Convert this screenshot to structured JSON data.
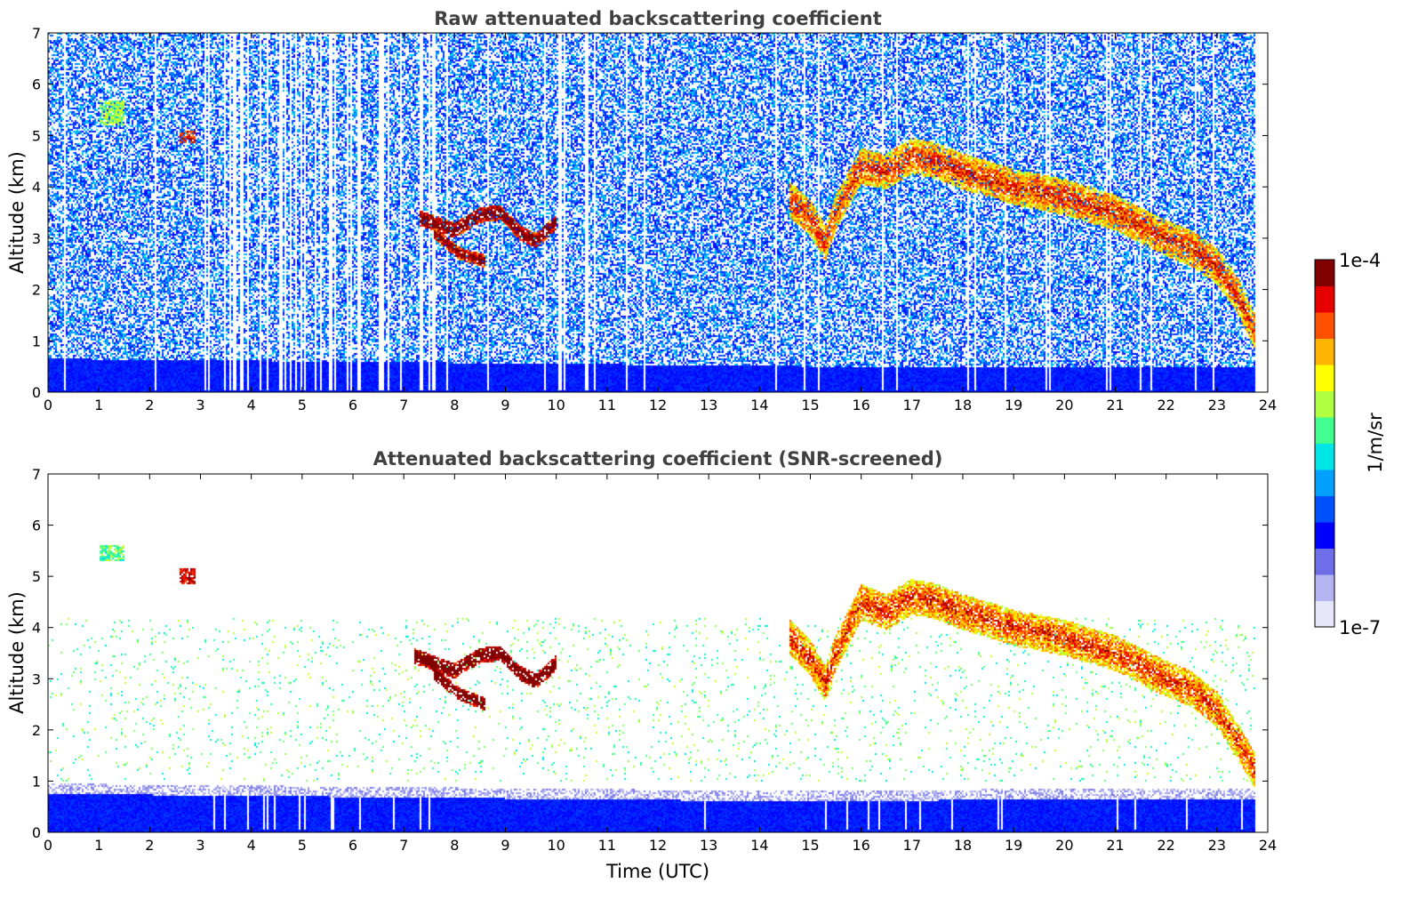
{
  "chart_data": [
    {
      "type": "heatmap",
      "title": "Raw attenuated backscattering coefficient",
      "xlabel": "",
      "ylabel": "Altitude (km)",
      "xlim": [
        0,
        24
      ],
      "ylim": [
        0,
        7
      ],
      "xticks": [
        "0",
        "1",
        "2",
        "3",
        "4",
        "5",
        "6",
        "7",
        "8",
        "9",
        "10",
        "11",
        "12",
        "13",
        "14",
        "15",
        "16",
        "17",
        "18",
        "19",
        "20",
        "21",
        "22",
        "23",
        "24"
      ],
      "yticks": [
        "0",
        "1",
        "2",
        "3",
        "4",
        "5",
        "6",
        "7"
      ],
      "data_end_time": 23.75,
      "noise": "high",
      "boundary_layer_top_km": [
        [
          0,
          0.65
        ],
        [
          5,
          0.6
        ],
        [
          10,
          0.55
        ],
        [
          15,
          0.5
        ],
        [
          20,
          0.5
        ],
        [
          23.75,
          0.5
        ]
      ],
      "features": [
        {
          "name": "cirrus-patch-1",
          "t": [
            1.0,
            1.5
          ],
          "z": [
            5.2,
            5.7
          ],
          "level": 0.6
        },
        {
          "name": "cirrus-patch-2",
          "t": [
            2.6,
            2.9
          ],
          "z": [
            4.85,
            5.1
          ],
          "level": 0.9
        },
        {
          "name": "cloud-layer-1",
          "path": [
            [
              7.3,
              3.4
            ],
            [
              8.0,
              3.15
            ],
            [
              8.5,
              3.45
            ],
            [
              8.9,
              3.5
            ],
            [
              9.3,
              3.1
            ],
            [
              9.6,
              2.95
            ],
            [
              10.0,
              3.3
            ]
          ],
          "thickness_km": 0.3,
          "level": 0.9
        },
        {
          "name": "cloud-fallstreaks-1",
          "path": [
            [
              7.6,
              3.1
            ],
            [
              8.1,
              2.7
            ],
            [
              8.6,
              2.55
            ]
          ],
          "thickness_km": 0.25,
          "level": 0.85
        },
        {
          "name": "cloud-layer-2",
          "path": [
            [
              14.6,
              3.75
            ],
            [
              15.0,
              3.4
            ],
            [
              15.3,
              2.9
            ],
            [
              15.5,
              3.5
            ],
            [
              16.0,
              4.4
            ],
            [
              16.5,
              4.3
            ],
            [
              17.0,
              4.6
            ],
            [
              17.5,
              4.5
            ],
            [
              18.0,
              4.3
            ],
            [
              19.0,
              4.0
            ],
            [
              20.0,
              3.8
            ],
            [
              21.0,
              3.5
            ],
            [
              22.0,
              3.0
            ],
            [
              22.5,
              2.8
            ],
            [
              23.0,
              2.45
            ],
            [
              23.4,
              1.9
            ],
            [
              23.75,
              1.2
            ]
          ],
          "thickness_km": 0.7,
          "level": 0.7
        }
      ]
    },
    {
      "type": "heatmap",
      "title": "Attenuated backscattering coefficient (SNR-screened)",
      "xlabel": "Time (UTC)",
      "ylabel": "Altitude (km)",
      "xlim": [
        0,
        24
      ],
      "ylim": [
        0,
        7
      ],
      "xticks": [
        "0",
        "1",
        "2",
        "3",
        "4",
        "5",
        "6",
        "7",
        "8",
        "9",
        "10",
        "11",
        "12",
        "13",
        "14",
        "15",
        "16",
        "17",
        "18",
        "19",
        "20",
        "21",
        "22",
        "23",
        "24"
      ],
      "yticks": [
        "0",
        "1",
        "2",
        "3",
        "4",
        "5",
        "6",
        "7"
      ],
      "data_end_time": 23.75,
      "noise": "low",
      "boundary_layer_top_km": [
        [
          0,
          0.75
        ],
        [
          5,
          0.7
        ],
        [
          10,
          0.65
        ],
        [
          15,
          0.6
        ],
        [
          20,
          0.65
        ],
        [
          23.75,
          0.65
        ]
      ],
      "features": [
        {
          "name": "cirrus-patch-1",
          "t": [
            1.0,
            1.5
          ],
          "z": [
            5.3,
            5.6
          ],
          "level": 0.55
        },
        {
          "name": "cirrus-patch-2",
          "t": [
            2.6,
            2.9
          ],
          "z": [
            4.85,
            5.15
          ],
          "level": 0.95
        },
        {
          "name": "cloud-layer-1",
          "path": [
            [
              7.2,
              3.45
            ],
            [
              8.0,
              3.15
            ],
            [
              8.5,
              3.45
            ],
            [
              8.9,
              3.5
            ],
            [
              9.3,
              3.1
            ],
            [
              9.6,
              2.95
            ],
            [
              10.0,
              3.3
            ]
          ],
          "thickness_km": 0.3,
          "level": 0.95
        },
        {
          "name": "cloud-fallstreaks-1",
          "path": [
            [
              7.6,
              3.1
            ],
            [
              8.1,
              2.7
            ],
            [
              8.6,
              2.5
            ]
          ],
          "thickness_km": 0.25,
          "level": 0.95
        },
        {
          "name": "cloud-layer-2",
          "path": [
            [
              14.6,
              3.8
            ],
            [
              15.0,
              3.4
            ],
            [
              15.3,
              2.9
            ],
            [
              15.5,
              3.5
            ],
            [
              16.0,
              4.5
            ],
            [
              16.5,
              4.3
            ],
            [
              17.0,
              4.6
            ],
            [
              17.5,
              4.5
            ],
            [
              18.0,
              4.3
            ],
            [
              19.0,
              4.0
            ],
            [
              20.0,
              3.8
            ],
            [
              21.0,
              3.5
            ],
            [
              22.0,
              3.0
            ],
            [
              22.5,
              2.8
            ],
            [
              23.0,
              2.4
            ],
            [
              23.4,
              1.8
            ],
            [
              23.75,
              1.2
            ]
          ],
          "thickness_km": 0.7,
          "level": 0.7
        }
      ]
    }
  ],
  "colorbar": {
    "label": "1/m/sr",
    "max_label": "1e-4",
    "min_label": "1e-7",
    "colors": [
      "#e6e6fa",
      "#b4b4f0",
      "#6e6ee8",
      "#0000ff",
      "#0050ff",
      "#00a0ff",
      "#00e6e6",
      "#40ff90",
      "#b0ff40",
      "#ffff00",
      "#ffb400",
      "#ff5000",
      "#e60000",
      "#800000"
    ]
  }
}
